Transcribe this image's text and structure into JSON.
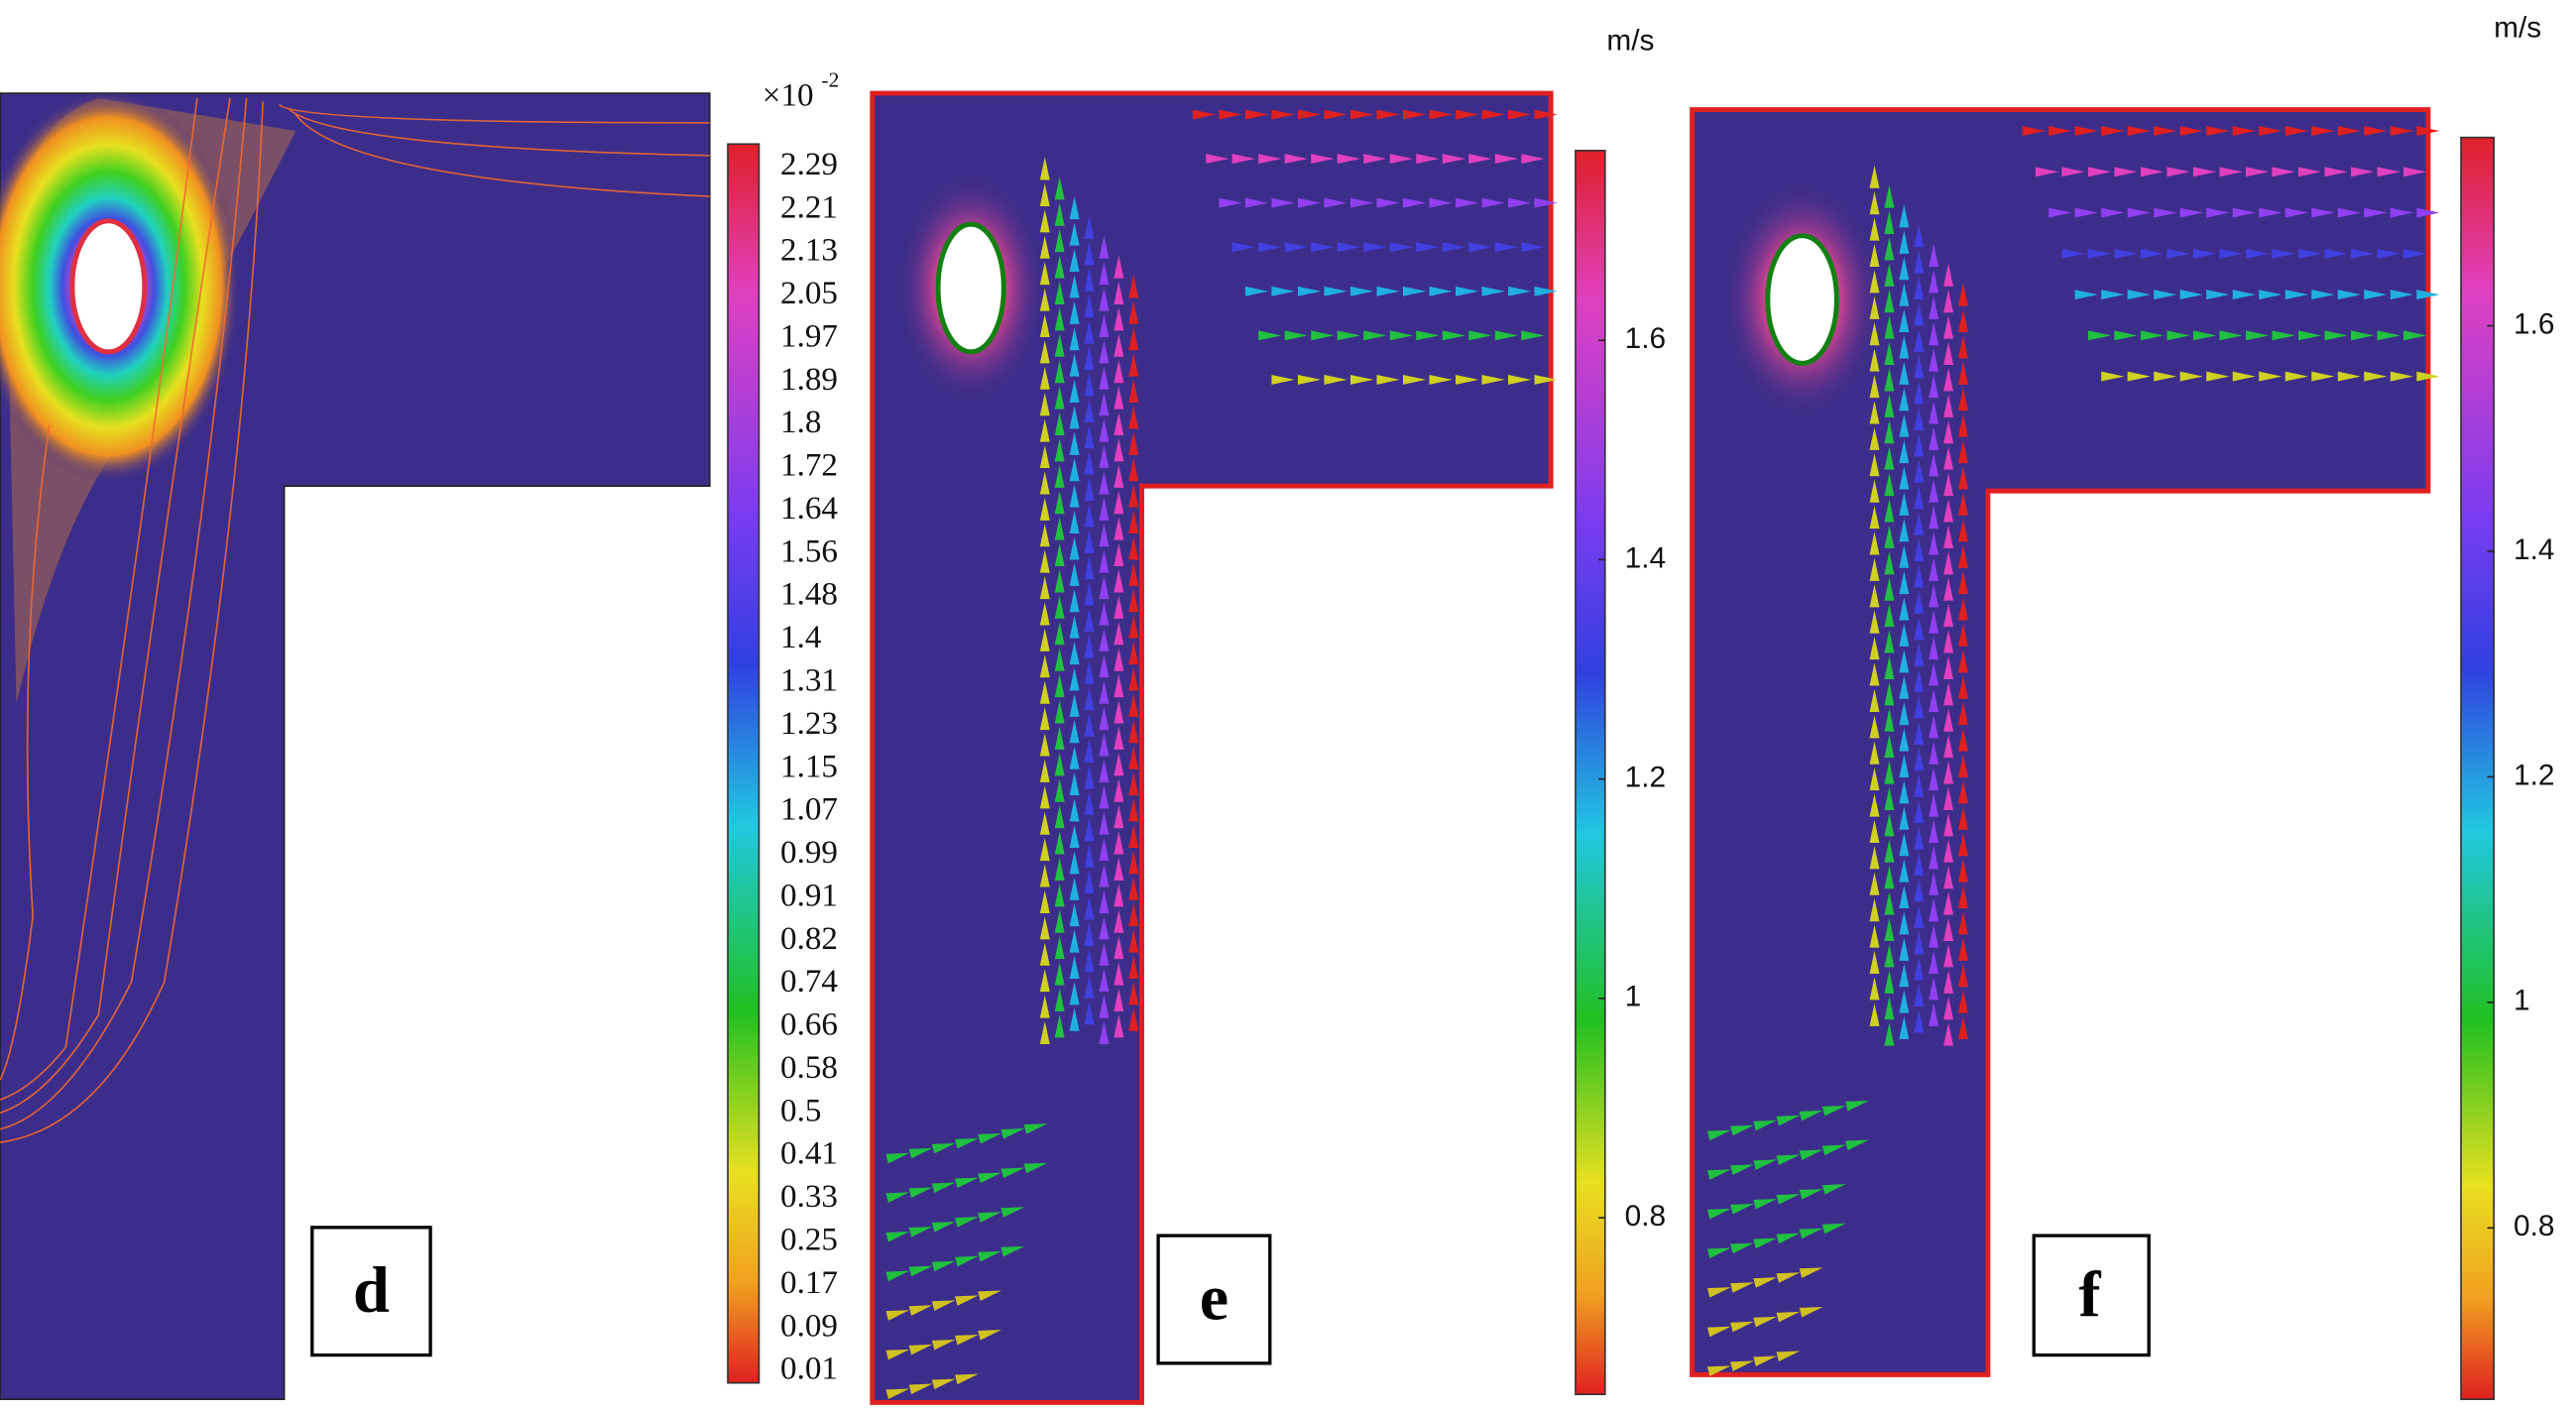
{
  "panels": [
    {
      "label": "d",
      "colorbar": {
        "multiplier": "×10",
        "exponent": "-2",
        "ticks": [
          2.29,
          2.21,
          2.13,
          2.05,
          1.97,
          1.89,
          1.8,
          1.72,
          1.64,
          1.56,
          1.48,
          1.4,
          1.31,
          1.23,
          1.15,
          1.07,
          0.99,
          0.91,
          0.82,
          0.74,
          0.66,
          0.58,
          0.5,
          0.41,
          0.33,
          0.25,
          0.17,
          0.09,
          0.01
        ]
      }
    },
    {
      "label": "e",
      "colorbar": {
        "unit": "m/s",
        "lim": [
          0.639,
          1.773
        ],
        "ticks": [
          1.6,
          1.4,
          1.2,
          1,
          0.8
        ]
      }
    },
    {
      "label": "f",
      "colorbar": {
        "unit": "m/s",
        "lim": [
          0.648,
          1.767
        ],
        "ticks": [
          1.6,
          1.4,
          1.2,
          1,
          0.8
        ]
      }
    }
  ]
}
